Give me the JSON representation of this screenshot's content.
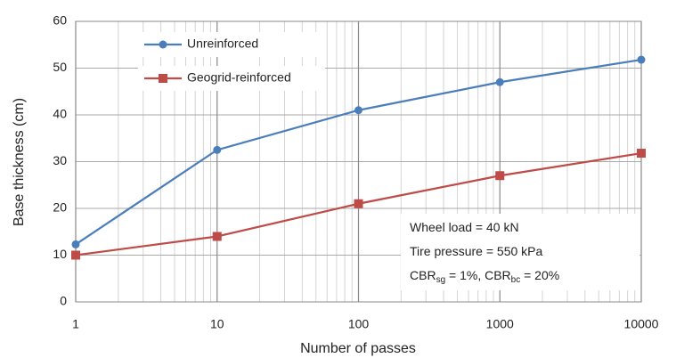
{
  "chart_data": {
    "type": "line",
    "x_label": "Number of passes",
    "y_label": "Base thickness (cm)",
    "x": [
      1,
      10,
      100,
      1000,
      10000
    ],
    "series": [
      {
        "name": "Unreinforced",
        "color": "#4a7ebb",
        "marker": "circle",
        "values": [
          12.3,
          32.5,
          41,
          47,
          51.8
        ]
      },
      {
        "name": "Geogrid-reinforced",
        "color": "#be4b48",
        "marker": "square",
        "values": [
          10,
          14,
          21,
          27,
          31.8
        ]
      }
    ],
    "xlim": [
      1,
      10000
    ],
    "xscale": "log",
    "xticks": [
      1,
      10,
      100,
      1000,
      10000
    ],
    "xminor_ticks": [
      2,
      3,
      4,
      5,
      6,
      7,
      8,
      9,
      20,
      30,
      40,
      50,
      60,
      70,
      80,
      90,
      200,
      300,
      400,
      500,
      600,
      700,
      800,
      900,
      2000,
      3000,
      4000,
      5000,
      6000,
      7000,
      8000,
      9000
    ],
    "ylim": [
      0,
      60
    ],
    "yticks": [
      0,
      10,
      20,
      30,
      40,
      50,
      60
    ],
    "grid": true,
    "legend": "upper left",
    "annotation": [
      [
        {
          "text": "Wheel load = 40 kN"
        }
      ],
      [
        {
          "text": "Tire pressure = 550 kPa"
        }
      ],
      [
        {
          "text": "CBR"
        },
        {
          "text": "sg",
          "sub": true
        },
        {
          "text": " = 1%, CBR"
        },
        {
          "text": "bc",
          "sub": true
        },
        {
          "text": " = 20%"
        }
      ]
    ]
  }
}
